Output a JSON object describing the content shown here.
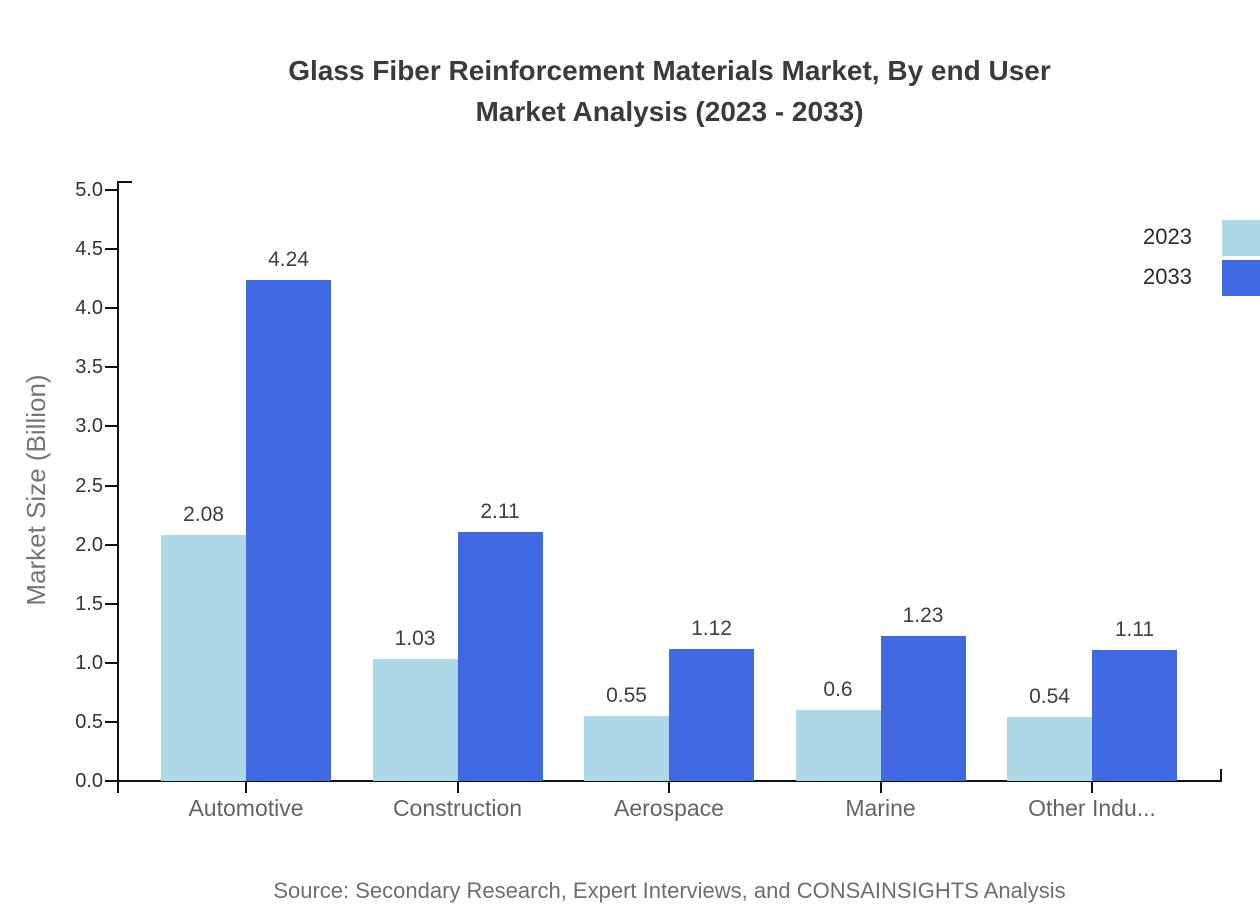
{
  "chart_data": {
    "type": "bar",
    "title_lines": [
      "Glass Fiber Reinforcement Materials Market, By end User",
      "Market Analysis (2023 - 2033)"
    ],
    "title": "Glass Fiber Reinforcement Materials Market, By end User Market Analysis (2023 - 2033)",
    "categories": [
      "Automotive",
      "Construction",
      "Aerospace",
      "Marine",
      "Other Indu..."
    ],
    "series": [
      {
        "name": "2023",
        "color": "#ADD8E6",
        "values": [
          2.08,
          1.03,
          0.55,
          0.6,
          0.54
        ]
      },
      {
        "name": "2033",
        "color": "#4169E1",
        "values": [
          4.24,
          2.11,
          1.12,
          1.23,
          1.11
        ]
      }
    ],
    "bar_value_labels": {
      "2023": [
        "2.08",
        "1.03",
        "0.55",
        "0.6",
        "0.54"
      ],
      "2033": [
        "4.24",
        "2.11",
        "1.12",
        "1.23",
        "1.11"
      ]
    },
    "xlabel": "",
    "ylabel": "Market Size (Billion)",
    "ylim": [
      0,
      5
    ],
    "ytick_step": 0.5,
    "yticks": [
      "0.0",
      "0.5",
      "1.0",
      "1.5",
      "2.0",
      "2.5",
      "3.0",
      "3.5",
      "4.0",
      "4.5",
      "5.0"
    ],
    "grid": false,
    "legend_position": "top-right",
    "axis_color": "#111111",
    "source": "Source: Secondary Research, Expert Interviews, and CONSAINSIGHTS Analysis"
  }
}
